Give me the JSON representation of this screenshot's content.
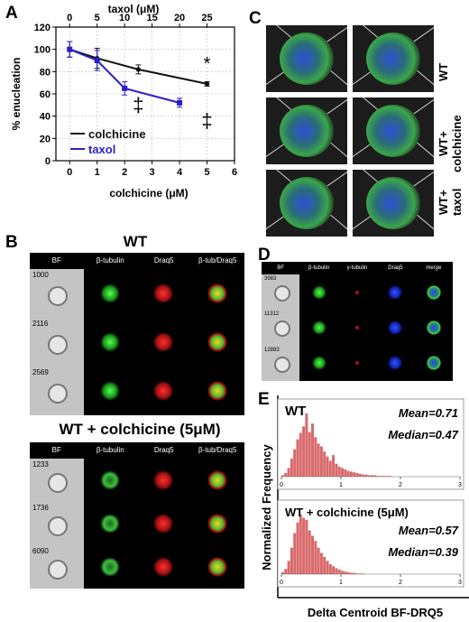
{
  "panels": {
    "A": "A",
    "B": "B",
    "C": "C",
    "D": "D",
    "E": "E"
  },
  "colors": {
    "colchicine": "#111111",
    "taxol": "#2a1fc9",
    "histogram": "#d9696b",
    "green": "#33dd33",
    "red": "#e02222",
    "blue": "#2233ee"
  },
  "chart_data": [
    {
      "type": "line",
      "ylabel": "% enucleation",
      "xlabel": "colchicine (μM)",
      "x2label": "taxol (μM)",
      "xlim": [
        -0.5,
        6
      ],
      "ylim": [
        0,
        120
      ],
      "x2lim": [
        -2.5,
        30
      ],
      "xticks": [
        "0",
        "1",
        "2",
        "3",
        "4",
        "5",
        "6"
      ],
      "x2ticks": [
        "0",
        "5",
        "10",
        "15",
        "20",
        "25"
      ],
      "yticks": [
        "0",
        "20",
        "40",
        "60",
        "80",
        "100",
        "120"
      ],
      "grid": true,
      "legend": "bottom-left",
      "series": [
        {
          "name": "colchicine",
          "x": [
            0,
            1,
            2.5,
            5
          ],
          "y": [
            100,
            92,
            82,
            69
          ],
          "err": [
            7,
            9,
            4,
            2
          ],
          "color": "#111111"
        },
        {
          "name": "taxol",
          "x2": [
            0,
            5,
            10,
            20
          ],
          "y": [
            100,
            90,
            65,
            52
          ],
          "err": [
            7,
            9,
            6,
            4
          ],
          "color": "#2a1fc9"
        }
      ],
      "annotations": [
        {
          "text": "*",
          "x": 5
        },
        {
          "text": "‡",
          "x": 2.5
        },
        {
          "text": "‡",
          "x": 5
        }
      ]
    },
    {
      "type": "bar",
      "ylabel": "Normalized Frequency",
      "xlabel": "Delta Centroid BF-DRQ5",
      "histograms": [
        {
          "title": "WT",
          "mean": "Mean=0.71",
          "median": "Median=0.47",
          "xlim": [
            0,
            3
          ],
          "xticks": [
            "0",
            "1",
            "2",
            "3"
          ],
          "bin_width": 0.05,
          "values": [
            0.02,
            0.05,
            0.12,
            0.25,
            0.38,
            0.52,
            0.61,
            0.7,
            0.88,
            0.62,
            0.74,
            0.55,
            0.46,
            0.42,
            0.35,
            0.28,
            0.22,
            0.3,
            0.18,
            0.14,
            0.12,
            0.1,
            0.08,
            0.07,
            0.06,
            0.05,
            0.04,
            0.03,
            0.03,
            0.02,
            0.02,
            0.02,
            0.01,
            0.01,
            0.01,
            0.01,
            0.01,
            0,
            0,
            0
          ]
        },
        {
          "title": "WT + colchicine (5μM)",
          "mean": "Mean=0.57",
          "median": "Median=0.39",
          "xlim": [
            0,
            3
          ],
          "xticks": [
            "0",
            "1",
            "2",
            "3"
          ],
          "bin_width": 0.05,
          "values": [
            0.03,
            0.08,
            0.2,
            0.4,
            0.62,
            0.78,
            0.9,
            0.85,
            0.82,
            0.66,
            0.58,
            0.5,
            0.4,
            0.32,
            0.26,
            0.2,
            0.15,
            0.12,
            0.09,
            0.07,
            0.05,
            0.04,
            0.03,
            0.02,
            0.02,
            0.01,
            0.01,
            0.01,
            0,
            0,
            0,
            0,
            0,
            0,
            0,
            0,
            0,
            0,
            0,
            0
          ]
        }
      ]
    }
  ],
  "panelB": {
    "title_wt": "WT",
    "title_col": "WT + colchicine (5μM)",
    "headers": [
      "BF",
      "β-tubulin",
      "Draq5",
      "β-tub/Draq5"
    ],
    "wt_ids": [
      "1000",
      "2116",
      "2569"
    ],
    "col_ids": [
      "1233",
      "1736",
      "6090"
    ]
  },
  "panelC": {
    "labels": [
      "WT",
      "WT+ colchicine",
      "WT+ taxol"
    ]
  },
  "panelD": {
    "headers": [
      "BF",
      "β-tubulin",
      "γ-tubulin",
      "Draq5",
      "merge"
    ],
    "ids": [
      "3983",
      "11312",
      "12883"
    ]
  }
}
